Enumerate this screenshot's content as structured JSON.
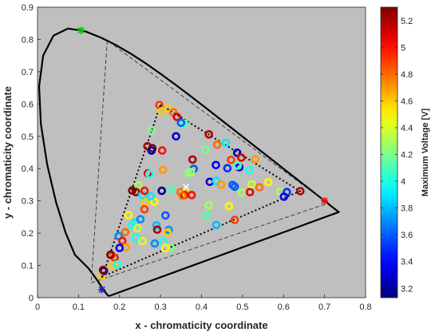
{
  "chart_data": {
    "type": "scatter",
    "xlabel": "x - chromaticity coordinate",
    "ylabel": "y - chromaticity coordinate",
    "xlim": [
      0,
      0.8
    ],
    "ylim": [
      0,
      0.9
    ],
    "xticks": [
      0,
      0.1,
      0.2,
      0.3,
      0.4,
      0.5,
      0.6,
      0.7,
      0.8
    ],
    "yticks": [
      0,
      0.1,
      0.2,
      0.3,
      0.4,
      0.5,
      0.6,
      0.7,
      0.8,
      0.9
    ],
    "grid": false,
    "background": "#bfbfbf",
    "colorbar": {
      "label": "Maximum Voltage [V]",
      "range": [
        3.13,
        5.3
      ],
      "ticks": [
        3.2,
        3.4,
        3.6,
        3.8,
        4,
        4.2,
        4.4,
        4.6,
        4.8,
        5,
        5.2
      ],
      "colormap": "jet"
    },
    "spectral_locus": [
      [
        0.1741,
        0.005
      ],
      [
        0.1714,
        0.0071
      ],
      [
        0.1689,
        0.0109
      ],
      [
        0.1644,
        0.0189
      ],
      [
        0.1566,
        0.0329
      ],
      [
        0.144,
        0.0568
      ],
      [
        0.1241,
        0.0913
      ],
      [
        0.0913,
        0.1327
      ],
      [
        0.0687,
        0.2007
      ],
      [
        0.0454,
        0.295
      ],
      [
        0.0235,
        0.4127
      ],
      [
        0.0082,
        0.5384
      ],
      [
        0.0039,
        0.6548
      ],
      [
        0.0139,
        0.7502
      ],
      [
        0.0389,
        0.812
      ],
      [
        0.0743,
        0.8338
      ],
      [
        0.1142,
        0.8262
      ],
      [
        0.1547,
        0.8059
      ],
      [
        0.1929,
        0.7816
      ],
      [
        0.2296,
        0.7543
      ],
      [
        0.2658,
        0.7243
      ],
      [
        0.3016,
        0.6923
      ],
      [
        0.3373,
        0.6589
      ],
      [
        0.3731,
        0.6245
      ],
      [
        0.4087,
        0.5896
      ],
      [
        0.4441,
        0.5547
      ],
      [
        0.4788,
        0.5202
      ],
      [
        0.5125,
        0.4866
      ],
      [
        0.5448,
        0.4544
      ],
      [
        0.5752,
        0.4242
      ],
      [
        0.6029,
        0.3965
      ],
      [
        0.627,
        0.3725
      ],
      [
        0.6482,
        0.3514
      ],
      [
        0.6658,
        0.334
      ],
      [
        0.6801,
        0.3197
      ],
      [
        0.6915,
        0.3083
      ],
      [
        0.7006,
        0.2993
      ],
      [
        0.7079,
        0.292
      ],
      [
        0.714,
        0.2859
      ],
      [
        0.719,
        0.2809
      ],
      [
        0.723,
        0.277
      ],
      [
        0.726,
        0.274
      ],
      [
        0.7347,
        0.2653
      ],
      [
        0.1741,
        0.005
      ]
    ],
    "reference_gamut": [
      [
        0.708,
        0.292
      ],
      [
        0.17,
        0.797
      ],
      [
        0.131,
        0.046
      ],
      [
        0.708,
        0.292
      ]
    ],
    "reference_markers": [
      {
        "x": 0.106,
        "y": 0.828,
        "color": "#00c000"
      },
      {
        "x": 0.7,
        "y": 0.3,
        "color": "#e01010"
      },
      {
        "x": 0.157,
        "y": 0.025,
        "color": "#2020c0"
      }
    ],
    "device_gamut": [
      [
        0.3,
        0.598
      ],
      [
        0.64,
        0.33
      ],
      [
        0.158,
        0.065
      ],
      [
        0.3,
        0.598
      ]
    ],
    "white_point": {
      "x": 0.362,
      "y": 0.343
    },
    "points": [
      [
        0.297,
        0.597,
        4.9
      ],
      [
        0.303,
        0.577,
        4.6
      ],
      [
        0.318,
        0.587,
        4.6
      ],
      [
        0.331,
        0.574,
        4.8
      ],
      [
        0.34,
        0.56,
        5.1
      ],
      [
        0.358,
        0.539,
        4.1
      ],
      [
        0.35,
        0.542,
        3.6
      ],
      [
        0.268,
        0.469,
        5.2
      ],
      [
        0.28,
        0.463,
        5.3
      ],
      [
        0.278,
        0.456,
        3.2
      ],
      [
        0.304,
        0.456,
        5.0
      ],
      [
        0.278,
        0.518,
        4.2
      ],
      [
        0.338,
        0.5,
        3.3
      ],
      [
        0.378,
        0.428,
        5.2
      ],
      [
        0.418,
        0.506,
        5.2
      ],
      [
        0.438,
        0.474,
        4.8
      ],
      [
        0.459,
        0.48,
        3.9
      ],
      [
        0.472,
        0.427,
        4.9
      ],
      [
        0.487,
        0.449,
        3.3
      ],
      [
        0.497,
        0.434,
        5.1
      ],
      [
        0.531,
        0.429,
        4.7
      ],
      [
        0.516,
        0.395,
        4.0
      ],
      [
        0.492,
        0.404,
        3.3
      ],
      [
        0.488,
        0.409,
        4.1
      ],
      [
        0.463,
        0.401,
        3.5
      ],
      [
        0.435,
        0.411,
        3.4
      ],
      [
        0.381,
        0.399,
        3.6
      ],
      [
        0.368,
        0.386,
        4.2
      ],
      [
        0.306,
        0.396,
        4.7
      ],
      [
        0.269,
        0.385,
        5.1
      ],
      [
        0.246,
        0.348,
        4.3
      ],
      [
        0.24,
        0.327,
        5.3
      ],
      [
        0.256,
        0.318,
        3.9
      ],
      [
        0.264,
        0.296,
        4.6
      ],
      [
        0.285,
        0.297,
        4.5
      ],
      [
        0.276,
        0.314,
        3.9
      ],
      [
        0.303,
        0.331,
        3.1
      ],
      [
        0.325,
        0.336,
        4.1
      ],
      [
        0.349,
        0.327,
        4.8
      ],
      [
        0.362,
        0.324,
        4.6
      ],
      [
        0.358,
        0.318,
        5.1
      ],
      [
        0.376,
        0.318,
        5.0
      ],
      [
        0.354,
        0.316,
        4.8
      ],
      [
        0.42,
        0.359,
        3.3
      ],
      [
        0.436,
        0.362,
        3.9
      ],
      [
        0.448,
        0.35,
        4.7
      ],
      [
        0.476,
        0.349,
        3.6
      ],
      [
        0.481,
        0.344,
        3.6
      ],
      [
        0.498,
        0.326,
        4.3
      ],
      [
        0.518,
        0.327,
        5.1
      ],
      [
        0.522,
        0.351,
        4.4
      ],
      [
        0.541,
        0.342,
        4.8
      ],
      [
        0.563,
        0.358,
        4.5
      ],
      [
        0.592,
        0.328,
        4.3
      ],
      [
        0.608,
        0.327,
        3.5
      ],
      [
        0.601,
        0.313,
        3.4
      ],
      [
        0.641,
        0.33,
        5.2
      ],
      [
        0.467,
        0.283,
        4.5
      ],
      [
        0.481,
        0.241,
        4.9
      ],
      [
        0.418,
        0.286,
        4.3
      ],
      [
        0.412,
        0.254,
        4.1
      ],
      [
        0.436,
        0.225,
        3.8
      ],
      [
        0.312,
        0.255,
        3.6
      ],
      [
        0.32,
        0.21,
        3.7
      ],
      [
        0.317,
        0.202,
        4.6
      ],
      [
        0.29,
        0.224,
        3.8
      ],
      [
        0.239,
        0.232,
        3.9
      ],
      [
        0.23,
        0.224,
        4.0
      ],
      [
        0.244,
        0.215,
        4.4
      ],
      [
        0.24,
        0.186,
        4.0
      ],
      [
        0.214,
        0.203,
        4.8
      ],
      [
        0.198,
        0.191,
        3.7
      ],
      [
        0.207,
        0.176,
        5.0
      ],
      [
        0.215,
        0.156,
        4.7
      ],
      [
        0.2,
        0.154,
        3.4
      ],
      [
        0.188,
        0.124,
        5.0
      ],
      [
        0.184,
        0.101,
        4.6
      ],
      [
        0.194,
        0.103,
        4.0
      ],
      [
        0.181,
        0.132,
        4.8
      ],
      [
        0.178,
        0.133,
        5.3
      ],
      [
        0.292,
        0.211,
        5.2
      ],
      [
        0.256,
        0.175,
        4.4
      ],
      [
        0.286,
        0.168,
        3.7
      ],
      [
        0.307,
        0.174,
        4.0
      ],
      [
        0.325,
        0.154,
        4.2
      ],
      [
        0.312,
        0.154,
        4.5
      ],
      [
        0.157,
        0.068,
        4.6
      ],
      [
        0.162,
        0.083,
        3.2
      ],
      [
        0.16,
        0.086,
        5.3
      ],
      [
        0.261,
        0.274,
        4.9
      ],
      [
        0.251,
        0.243,
        3.7
      ],
      [
        0.222,
        0.256,
        4.5
      ],
      [
        0.261,
        0.331,
        5.0
      ],
      [
        0.231,
        0.332,
        5.3
      ],
      [
        0.273,
        0.383,
        4.0
      ],
      [
        0.374,
        0.389,
        4.3
      ],
      [
        0.409,
        0.458,
        4.2
      ]
    ]
  }
}
